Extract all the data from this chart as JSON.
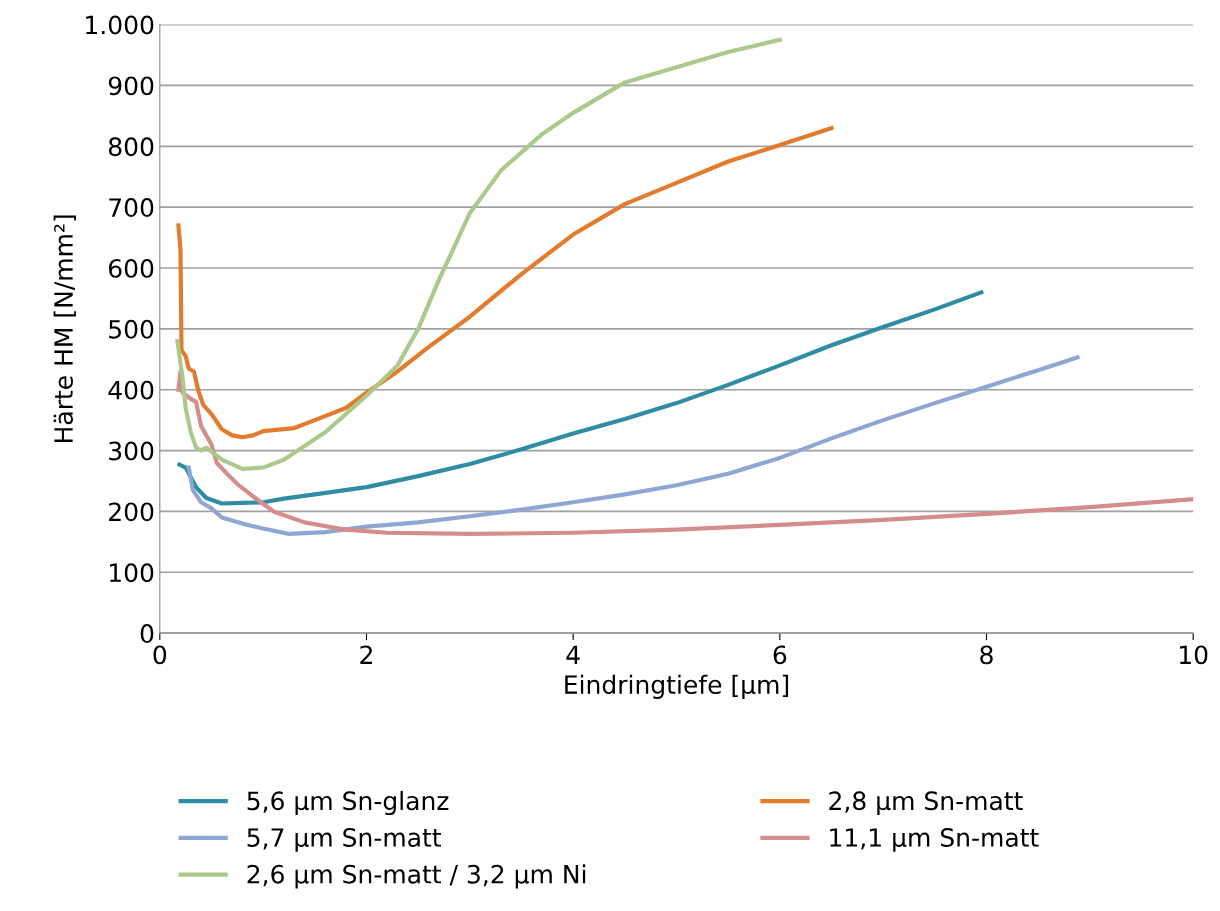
{
  "chart_data": {
    "type": "line",
    "xlabel": "Eindringtiefe [µm]",
    "ylabel": "Härte HM [N/mm²]",
    "xlim": [
      0,
      10
    ],
    "xticks": [
      0,
      2,
      4,
      6,
      8,
      10
    ],
    "ylim": [
      0,
      1000
    ],
    "yticks": [
      0,
      100,
      200,
      300,
      400,
      500,
      600,
      700,
      800,
      900,
      {
        "value": 1000,
        "label": "1.000"
      }
    ],
    "grid": "y",
    "legend": "bottom",
    "marker": "none",
    "line_style": "solid",
    "series": [
      {
        "name": "5,6 µm Sn-glanz",
        "color": "#2f8ca3",
        "x": [
          0.19,
          0.25,
          0.35,
          0.45,
          0.6,
          0.8,
          1.0,
          1.2,
          1.5,
          2,
          2.5,
          3,
          3.5,
          4,
          4.5,
          5,
          5.5,
          6,
          6.5,
          7,
          7.5,
          7.95
        ],
        "values": [
          277,
          272,
          240,
          222,
          213,
          214,
          215,
          221,
          228,
          240,
          258,
          278,
          302,
          328,
          352,
          378,
          408,
          440,
          473,
          503,
          532,
          560
        ]
      },
      {
        "name": "2,8 µm Sn-matt",
        "color": "#e27b2c",
        "x": [
          0.18,
          0.2,
          0.21,
          0.25,
          0.28,
          0.33,
          0.37,
          0.42,
          0.5,
          0.6,
          0.7,
          0.8,
          0.9,
          1.0,
          1.3,
          1.5,
          1.8,
          2,
          2.3,
          2.6,
          3,
          3.5,
          4,
          4.5,
          5,
          5.5,
          6,
          6.5
        ],
        "values": [
          670,
          630,
          465,
          455,
          435,
          430,
          400,
          375,
          360,
          335,
          325,
          322,
          325,
          332,
          337,
          350,
          370,
          395,
          430,
          470,
          520,
          590,
          655,
          705,
          740,
          775,
          802,
          830
        ]
      },
      {
        "name": "5,7 µm Sn-matt",
        "color": "#8ea6d2",
        "x": [
          0.28,
          0.32,
          0.4,
          0.5,
          0.6,
          0.8,
          1.0,
          1.25,
          1.6,
          2,
          2.5,
          3,
          3.5,
          4,
          4.5,
          5,
          5.5,
          6,
          6.5,
          7,
          7.5,
          8,
          8.5,
          8.88
        ],
        "values": [
          272,
          235,
          215,
          205,
          190,
          180,
          172,
          163,
          166,
          175,
          182,
          192,
          203,
          215,
          228,
          243,
          262,
          288,
          320,
          350,
          378,
          405,
          432,
          453
        ]
      },
      {
        "name": "11,1 µm Sn-matt",
        "color": "#d48c8c",
        "x": [
          0.18,
          0.2,
          0.22,
          0.3,
          0.35,
          0.4,
          0.5,
          0.55,
          0.65,
          0.75,
          0.9,
          1.1,
          1.4,
          1.8,
          2.2,
          3,
          4,
          5,
          6,
          7,
          8,
          9,
          10
        ],
        "values": [
          400,
          430,
          395,
          385,
          380,
          340,
          310,
          280,
          262,
          245,
          225,
          200,
          182,
          170,
          165,
          163,
          165,
          170,
          178,
          186,
          196,
          207,
          220
        ]
      },
      {
        "name": "2,6 µm Sn-matt / 3,2 µm Ni",
        "color": "#acc98c",
        "x": [
          0.17,
          0.22,
          0.25,
          0.3,
          0.35,
          0.4,
          0.45,
          0.6,
          0.8,
          1.0,
          1.2,
          1.6,
          2,
          2.3,
          2.5,
          2.7,
          3,
          3.3,
          3.7,
          4,
          4.5,
          5,
          5.5,
          6
        ],
        "values": [
          480,
          420,
          370,
          330,
          305,
          300,
          305,
          285,
          270,
          272,
          285,
          330,
          390,
          440,
          500,
          580,
          690,
          760,
          820,
          855,
          905,
          930,
          955,
          975
        ]
      }
    ]
  }
}
